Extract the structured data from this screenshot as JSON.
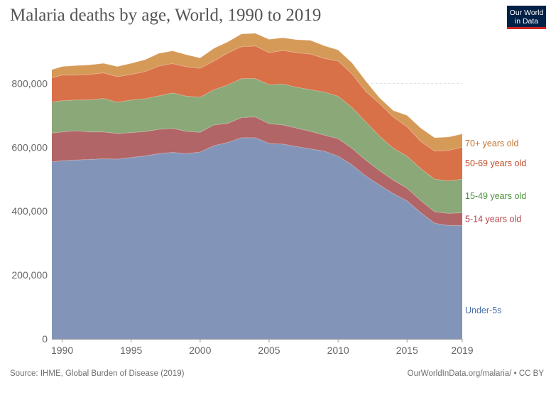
{
  "header": {
    "title": "Malaria deaths by age, World, 1990 to 2019"
  },
  "logo": {
    "line1": "Our World",
    "line2": "in Data",
    "bg_color": "#002147",
    "bar_color": "#ce261e"
  },
  "footer": {
    "source": "Source: IHME, Global Burden of Disease (2019)",
    "credit": "OurWorldInData.org/malaria/ • CC BY"
  },
  "chart_data": {
    "type": "area",
    "stacked": true,
    "title": "Malaria deaths by age, World, 1990 to 2019",
    "xlabel": "",
    "ylabel": "",
    "xlim": [
      1989.25,
      2019
    ],
    "ylim": [
      0,
      950000
    ],
    "x_ticks": [
      1990,
      1995,
      2000,
      2005,
      2010,
      2015,
      2019
    ],
    "x_tick_labels": [
      "1990",
      "1995",
      "2000",
      "2005",
      "2010",
      "2015",
      "2019"
    ],
    "y_ticks": [
      0,
      200000,
      400000,
      600000,
      800000
    ],
    "y_tick_labels": [
      "0",
      "200,000",
      "400,000",
      "600,000",
      "800,000"
    ],
    "grid": "horizontal dotted",
    "legend_placement": "right, inline labels",
    "x": [
      1989,
      1990,
      1991,
      1992,
      1993,
      1994,
      1995,
      1996,
      1997,
      1998,
      1999,
      2000,
      2001,
      2002,
      2003,
      2004,
      2005,
      2006,
      2007,
      2008,
      2009,
      2010,
      2011,
      2012,
      2013,
      2014,
      2015,
      2016,
      2017,
      2018,
      2019
    ],
    "series": [
      {
        "name": "Under-5s",
        "color": "#8295b8",
        "values": [
          553000,
          558000,
          560000,
          562000,
          564000,
          563000,
          568000,
          573000,
          580000,
          584000,
          580000,
          585000,
          605000,
          615000,
          630000,
          630000,
          612000,
          610000,
          602000,
          595000,
          588000,
          572000,
          545000,
          510000,
          482000,
          455000,
          432000,
          395000,
          362000,
          355000,
          355000
        ]
      },
      {
        "name": "5-14 years old",
        "color": "#b26566",
        "values": [
          90000,
          90000,
          92000,
          86000,
          84000,
          80000,
          78000,
          76000,
          76000,
          75000,
          70000,
          62000,
          65000,
          60000,
          63000,
          65000,
          62000,
          60000,
          58000,
          55000,
          50000,
          55000,
          52000,
          50000,
          45000,
          42000,
          40000,
          38000,
          36000,
          38000,
          40000
        ]
      },
      {
        "name": "15-49 years old",
        "color": "#8aa878",
        "values": [
          97000,
          98000,
          96000,
          100000,
          105000,
          98000,
          102000,
          103000,
          105000,
          111000,
          110000,
          110000,
          110000,
          120000,
          122000,
          120000,
          122000,
          128000,
          128000,
          130000,
          135000,
          133000,
          128000,
          120000,
          108000,
          100000,
          100000,
          100000,
          102000,
          102000,
          105000
        ]
      },
      {
        "name": "50-69 years old",
        "color": "#d87048",
        "values": [
          75000,
          80000,
          78000,
          80000,
          80000,
          80000,
          80000,
          85000,
          93000,
          92000,
          92000,
          90000,
          90000,
          100000,
          100000,
          102000,
          100000,
          105000,
          108000,
          112000,
          105000,
          110000,
          105000,
          95000,
          102000,
          98000,
          92000,
          85000,
          88000,
          95000,
          100000
        ]
      },
      {
        "name": "70+ years old",
        "color": "#d69a58",
        "values": [
          25000,
          27000,
          30000,
          30000,
          30000,
          32000,
          35000,
          37000,
          40000,
          40000,
          38000,
          33000,
          40000,
          35000,
          40000,
          40000,
          42000,
          40000,
          41000,
          43000,
          40000,
          35000,
          35000,
          33000,
          18000,
          20000,
          36000,
          42000,
          42000,
          42000,
          42000
        ]
      }
    ]
  }
}
